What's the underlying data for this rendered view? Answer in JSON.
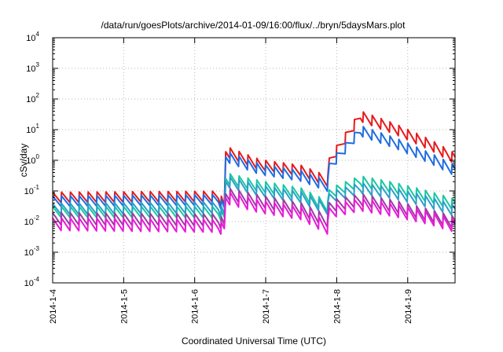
{
  "chart_data": {
    "type": "line",
    "title": "/data/run/goesPlots/archive/2014-01-09/16:00/flux/../bryn/5daysMars.plot",
    "xlabel": "Coordinated Universal Time (UTC)",
    "ylabel": "cSv/day",
    "yscale": "log",
    "ylim": [
      0.0001,
      10000
    ],
    "xlim": [
      "2014-01-04",
      "2014-01-09T16:00"
    ],
    "grid": true,
    "x_ticks": [
      "2014-1-4",
      "2014-1-5",
      "2014-1-6",
      "2014-1-7",
      "2014-1-8",
      "2014-1-9"
    ],
    "y_ticks": [
      {
        "base": "10",
        "exp": "-4"
      },
      {
        "base": "10",
        "exp": "-3"
      },
      {
        "base": "10",
        "exp": "-2"
      },
      {
        "base": "10",
        "exp": "-1"
      },
      {
        "base": "10",
        "exp": "0"
      },
      {
        "base": "10",
        "exp": "1"
      },
      {
        "base": "10",
        "exp": "2"
      },
      {
        "base": "10",
        "exp": "3"
      },
      {
        "base": "10",
        "exp": "4"
      }
    ],
    "series": [
      {
        "color": "#e8191b",
        "sawtooth_amplitude": 2.3,
        "envelope": [
          [
            "2014-01-04T00:00",
            0.06
          ],
          [
            "2014-01-06T08:00",
            0.065
          ],
          [
            "2014-01-06T10:00",
            0.03
          ],
          [
            "2014-01-06T10:30",
            1.9
          ],
          [
            "2014-01-06T22:00",
            0.7
          ],
          [
            "2014-01-07T12:00",
            0.45
          ],
          [
            "2014-01-07T21:00",
            0.2
          ],
          [
            "2014-01-07T21:30",
            0.9
          ],
          [
            "2014-01-08T08:00",
            27
          ],
          [
            "2014-01-08T20:00",
            10
          ],
          [
            "2014-01-09T08:00",
            3
          ],
          [
            "2014-01-09T16:00",
            1.1
          ]
        ]
      },
      {
        "color": "#1f6ce0",
        "sawtooth_amplitude": 2.3,
        "envelope": [
          [
            "2014-01-04T00:00",
            0.045
          ],
          [
            "2014-01-06T08:00",
            0.05
          ],
          [
            "2014-01-06T10:00",
            0.025
          ],
          [
            "2014-01-06T10:30",
            1.3
          ],
          [
            "2014-01-06T22:00",
            0.5
          ],
          [
            "2014-01-07T12:00",
            0.3
          ],
          [
            "2014-01-07T21:00",
            0.14
          ],
          [
            "2014-01-07T21:30",
            0.6
          ],
          [
            "2014-01-08T08:00",
            9
          ],
          [
            "2014-01-08T20:00",
            3.5
          ],
          [
            "2014-01-09T08:00",
            1.1
          ],
          [
            "2014-01-09T16:00",
            0.45
          ]
        ]
      },
      {
        "color": "#19c8a0",
        "sawtooth_amplitude": 2.4,
        "envelope": [
          [
            "2014-01-04T00:00",
            0.02
          ],
          [
            "2014-01-06T08:00",
            0.02
          ],
          [
            "2014-01-06T10:00",
            0.012
          ],
          [
            "2014-01-06T10:30",
            0.25
          ],
          [
            "2014-01-06T22:00",
            0.14
          ],
          [
            "2014-01-07T12:00",
            0.08
          ],
          [
            "2014-01-07T21:00",
            0.03
          ],
          [
            "2014-01-07T21:30",
            0.08
          ],
          [
            "2014-01-08T08:00",
            0.2
          ],
          [
            "2014-01-08T20:00",
            0.12
          ],
          [
            "2014-01-09T08:00",
            0.06
          ],
          [
            "2014-01-09T16:00",
            0.035
          ]
        ]
      },
      {
        "color": "#2aa0c8",
        "sawtooth_amplitude": 2.4,
        "envelope": [
          [
            "2014-01-04T00:00",
            0.025
          ],
          [
            "2014-01-06T08:00",
            0.028
          ],
          [
            "2014-01-06T10:00",
            0.015
          ],
          [
            "2014-01-06T10:30",
            0.2
          ],
          [
            "2014-01-06T22:00",
            0.1
          ],
          [
            "2014-01-07T12:00",
            0.06
          ],
          [
            "2014-01-07T21:00",
            0.025
          ],
          [
            "2014-01-07T21:30",
            0.06
          ],
          [
            "2014-01-08T08:00",
            0.12
          ],
          [
            "2014-01-08T20:00",
            0.08
          ],
          [
            "2014-01-09T08:00",
            0.04
          ],
          [
            "2014-01-09T16:00",
            0.022
          ]
        ]
      },
      {
        "color": "#9a3da0",
        "sawtooth_amplitude": 2.6,
        "envelope": [
          [
            "2014-01-04T00:00",
            0.012
          ],
          [
            "2014-01-06T08:00",
            0.011
          ],
          [
            "2014-01-06T10:00",
            0.007
          ],
          [
            "2014-01-06T10:30",
            0.08
          ],
          [
            "2014-01-06T22:00",
            0.045
          ],
          [
            "2014-01-07T12:00",
            0.025
          ],
          [
            "2014-01-07T21:00",
            0.01
          ],
          [
            "2014-01-07T21:30",
            0.03
          ],
          [
            "2014-01-08T08:00",
            0.05
          ],
          [
            "2014-01-08T20:00",
            0.03
          ],
          [
            "2014-01-09T08:00",
            0.015
          ],
          [
            "2014-01-09T16:00",
            0.009
          ]
        ]
      },
      {
        "color": "#e81ad8",
        "sawtooth_amplitude": 2.7,
        "envelope": [
          [
            "2014-01-04T00:00",
            0.008
          ],
          [
            "2014-01-06T08:00",
            0.007
          ],
          [
            "2014-01-06T10:00",
            0.005
          ],
          [
            "2014-01-06T10:30",
            0.06
          ],
          [
            "2014-01-06T22:00",
            0.03
          ],
          [
            "2014-01-07T12:00",
            0.018
          ],
          [
            "2014-01-07T21:00",
            0.006
          ],
          [
            "2014-01-07T21:30",
            0.02
          ],
          [
            "2014-01-08T08:00",
            0.035
          ],
          [
            "2014-01-08T20:00",
            0.022
          ],
          [
            "2014-01-09T08:00",
            0.012
          ],
          [
            "2014-01-09T16:00",
            0.007
          ]
        ]
      }
    ],
    "sawtooth_period_hours": 3
  }
}
